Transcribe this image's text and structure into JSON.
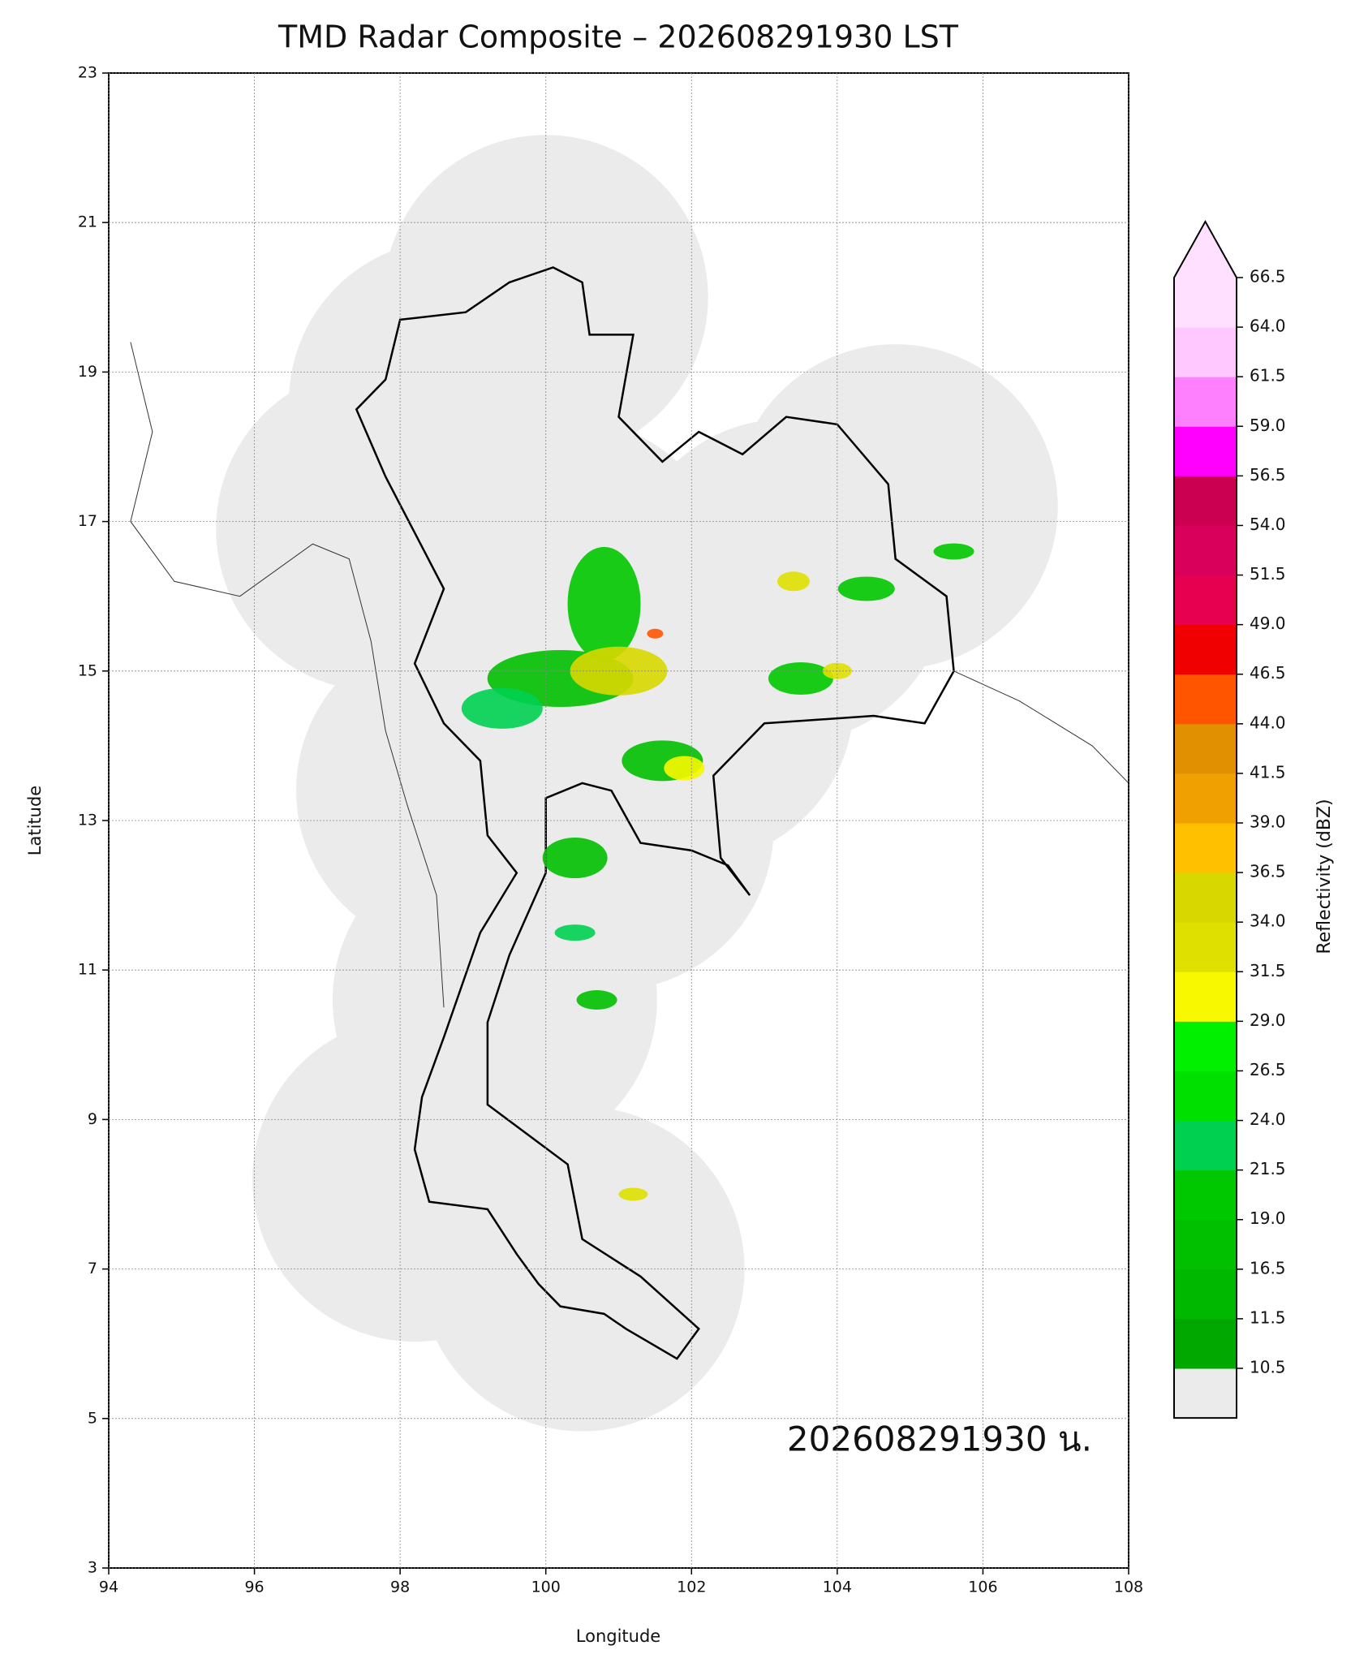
{
  "chart_data": {
    "type": "map",
    "title": "TMD Radar Composite – 202608291930 LST",
    "x_label": "Longitude",
    "y_label": "Latitude",
    "xlim": [
      94,
      108
    ],
    "ylim": [
      3,
      23
    ],
    "xticks": [
      94,
      96,
      98,
      100,
      102,
      104,
      106,
      108
    ],
    "yticks": [
      3,
      5,
      7,
      9,
      11,
      13,
      15,
      17,
      19,
      21,
      23
    ],
    "grid": true,
    "annotation": "202608291930 น.",
    "colorbar": {
      "label": "Reflectivity (dBZ)",
      "ticks": [
        10.5,
        11.5,
        16.5,
        {
          "value": 19,
          "label": "19.0"
        },
        21.5,
        {
          "value": 24,
          "label": "24.0"
        },
        26.5,
        {
          "value": 29,
          "label": "29.0"
        },
        31.5,
        {
          "value": 34,
          "label": "34.0"
        },
        36.5,
        {
          "value": 39,
          "label": "39.0"
        },
        41.5,
        {
          "value": 44,
          "label": "44.0"
        },
        46.5,
        {
          "value": 49,
          "label": "49.0"
        },
        51.5,
        {
          "value": 54,
          "label": "54.0"
        },
        56.5,
        {
          "value": 59,
          "label": "59.0"
        },
        61.5,
        {
          "value": 64,
          "label": "64.0"
        },
        66.5
      ],
      "colors": [
        "#00a800",
        "#00b800",
        "#00c000",
        "#00c800",
        "#00d050",
        "#00e000",
        "#00f000",
        "#f8f800",
        "#e0e000",
        "#d8d800",
        "#ffc000",
        "#f0a000",
        "#e09000",
        "#ff5500",
        "#f00000",
        "#e80050",
        "#d8005a",
        "#cc0050",
        "#ff00ff",
        "#ff80ff",
        "#ffc8ff",
        "#ffe0ff"
      ],
      "under_color": "#ebebeb",
      "over_color": "#ffe0ff"
    }
  }
}
